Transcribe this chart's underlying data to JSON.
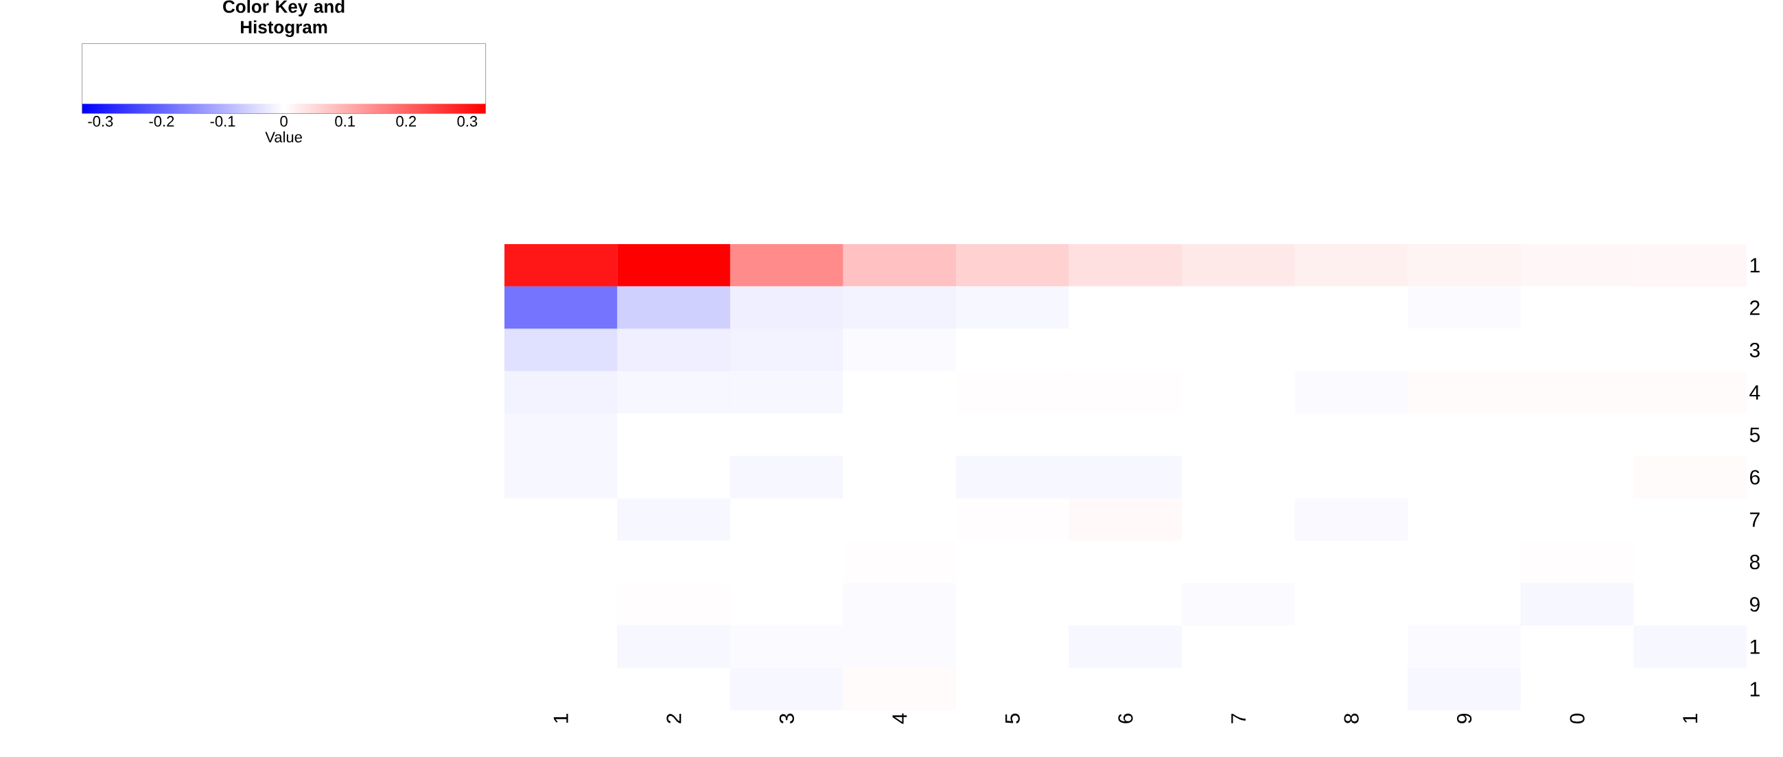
{
  "chart_data": {
    "type": "heatmap",
    "categories": [
      "1",
      "2",
      "3",
      "4",
      "5",
      "6",
      "7",
      "8",
      "9",
      "0",
      "1"
    ],
    "y_categories": [
      "1",
      "2",
      "3",
      "4",
      "5",
      "6",
      "7",
      "8",
      "9",
      "1",
      "1"
    ],
    "cells": [
      [
        0.3,
        0.33,
        0.15,
        0.08,
        0.06,
        0.04,
        0.03,
        0.02,
        0.015,
        0.01,
        0.01
      ],
      [
        -0.18,
        -0.06,
        -0.02,
        -0.015,
        -0.01,
        0,
        0,
        0,
        -0.005,
        0,
        0
      ],
      [
        -0.04,
        -0.02,
        -0.015,
        -0.005,
        0,
        0,
        0,
        0,
        0,
        0,
        0
      ],
      [
        -0.015,
        -0.01,
        -0.01,
        0,
        0.003,
        0.003,
        0,
        -0.005,
        0.005,
        0.005,
        0.005
      ],
      [
        -0.01,
        0,
        0,
        0,
        0,
        0,
        0,
        0,
        0,
        0,
        0
      ],
      [
        -0.01,
        0,
        -0.01,
        0,
        -0.01,
        -0.01,
        0,
        0,
        0,
        0,
        0.005
      ],
      [
        0,
        -0.01,
        0,
        0,
        0.003,
        0.008,
        0,
        -0.008,
        0,
        0,
        0
      ],
      [
        0,
        0,
        0,
        0.003,
        0,
        0,
        0,
        0,
        0,
        0.003,
        0
      ],
      [
        0,
        0.003,
        0,
        -0.005,
        0,
        0,
        -0.005,
        0,
        0,
        -0.01,
        0
      ],
      [
        0,
        -0.01,
        -0.005,
        -0.005,
        0,
        -0.01,
        0,
        0,
        -0.005,
        0,
        -0.01
      ],
      [
        0,
        0,
        -0.01,
        0.005,
        0,
        0,
        0,
        0,
        -0.01,
        0,
        0
      ]
    ],
    "clim": [
      -0.33,
      0.33
    ],
    "cticks": [
      -0.3,
      -0.2,
      -0.1,
      0,
      0.1,
      0.2,
      0.3
    ],
    "clabel": "Value",
    "legend_title": "Color Key and Histogram"
  }
}
